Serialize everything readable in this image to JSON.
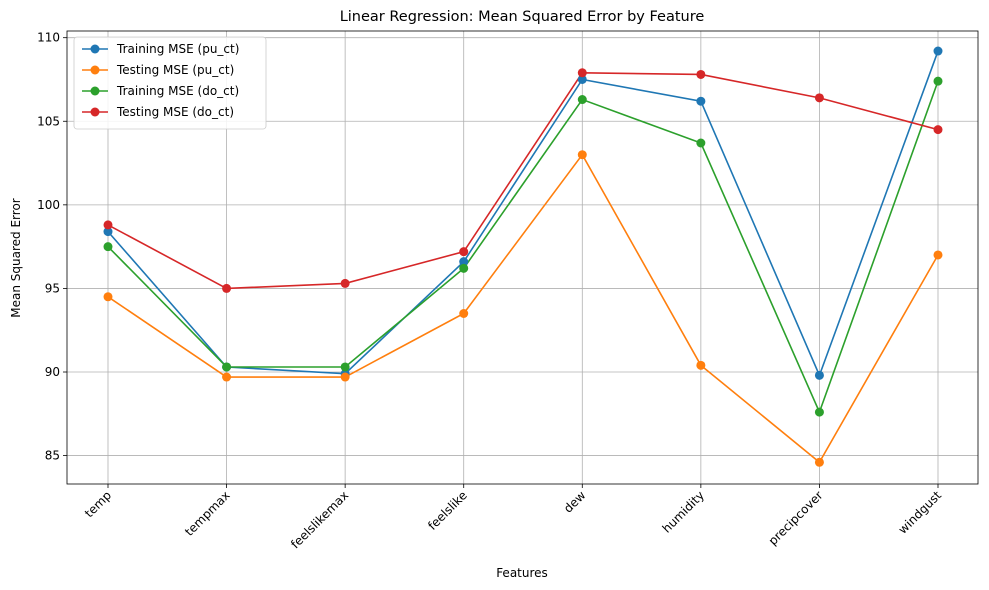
{
  "chart_data": {
    "type": "line",
    "title": "Linear Regression: Mean Squared Error by Feature",
    "xlabel": "Features",
    "ylabel": "Mean Squared Error",
    "categories": [
      "temp",
      "tempmax",
      "feelslikemax",
      "feelslike",
      "dew",
      "humidity",
      "precipcover",
      "windgust"
    ],
    "ylim": [
      83.3,
      110.4
    ],
    "yticks": [
      85,
      90,
      95,
      100,
      105,
      110
    ],
    "grid": true,
    "legend_position": "top-left",
    "series": [
      {
        "name": "Training MSE (pu_ct)",
        "color": "#1f77b4",
        "values": [
          98.4,
          90.3,
          89.9,
          96.6,
          107.5,
          106.2,
          89.8,
          109.2
        ]
      },
      {
        "name": "Testing MSE (pu_ct)",
        "color": "#ff7f0e",
        "values": [
          94.5,
          89.7,
          89.7,
          93.5,
          103.0,
          90.4,
          84.6,
          97.0
        ]
      },
      {
        "name": "Training MSE (do_ct)",
        "color": "#2ca02c",
        "values": [
          97.5,
          90.3,
          90.3,
          96.2,
          106.3,
          103.7,
          87.6,
          107.4
        ]
      },
      {
        "name": "Testing MSE (do_ct)",
        "color": "#d62728",
        "values": [
          98.8,
          95.0,
          95.3,
          97.2,
          107.9,
          107.8,
          106.4,
          104.5
        ]
      }
    ]
  }
}
